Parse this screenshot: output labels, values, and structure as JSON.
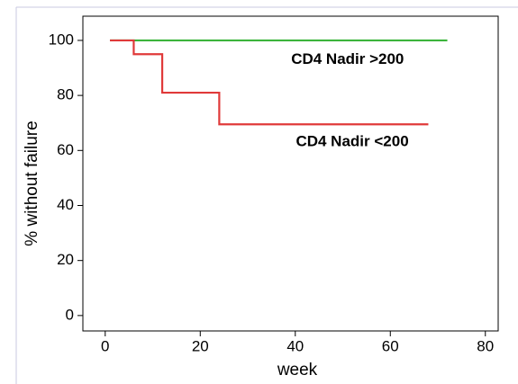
{
  "chart_data": {
    "type": "line",
    "x_label": "week",
    "y_label": "% without failure",
    "xlim": [
      -4.7,
      82.7
    ],
    "ylim": [
      -5.6,
      108.8
    ],
    "xticks": [
      0,
      20,
      40,
      60,
      80
    ],
    "yticks": [
      0,
      20,
      40,
      60,
      80,
      100
    ],
    "series": [
      {
        "color": "#3cb43c",
        "x": [
          1,
          72
        ],
        "values": [
          100,
          100
        ]
      },
      {
        "color": "#e03a3a",
        "x": [
          1,
          6,
          6,
          12,
          12,
          24,
          24,
          68
        ],
        "values": [
          100,
          100,
          95,
          95,
          81,
          81,
          69.5,
          69.5
        ]
      }
    ],
    "annotations": [
      {
        "text": "CD4 Nadir >200",
        "x": 51,
        "y": 93
      },
      {
        "text": "CD4 Nadir <200",
        "x": 52,
        "y": 63
      }
    ]
  }
}
